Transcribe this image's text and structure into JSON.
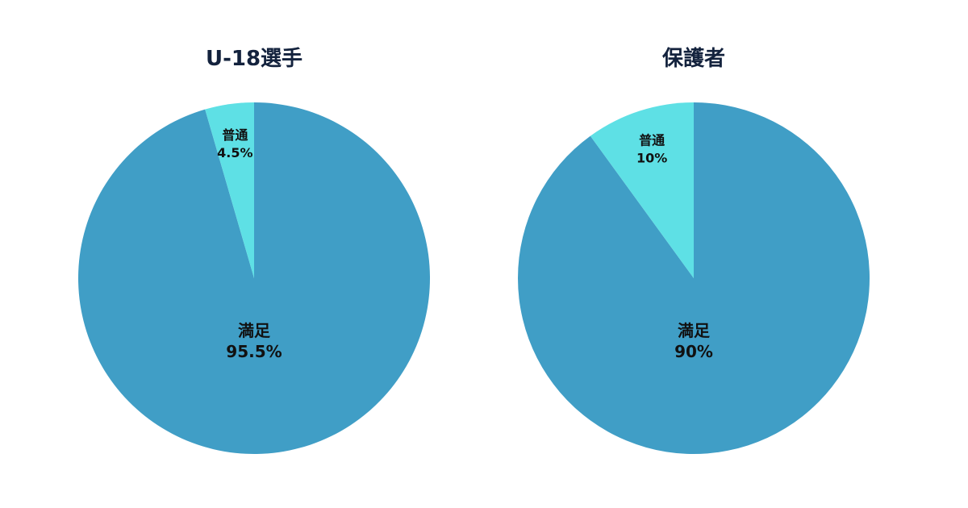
{
  "chart_data": [
    {
      "type": "pie",
      "title": "U-18選手",
      "slices": [
        {
          "label": "満足",
          "value": 95.5,
          "display": "95.5%",
          "color": "#409ec6"
        },
        {
          "label": "普通",
          "value": 4.5,
          "display": "4.5%",
          "color": "#5ee0e5"
        }
      ]
    },
    {
      "type": "pie",
      "title": "保護者",
      "slices": [
        {
          "label": "満足",
          "value": 90,
          "display": "90%",
          "color": "#409ec6"
        },
        {
          "label": "普通",
          "value": 10,
          "display": "10%",
          "color": "#5ee0e5"
        }
      ]
    }
  ]
}
